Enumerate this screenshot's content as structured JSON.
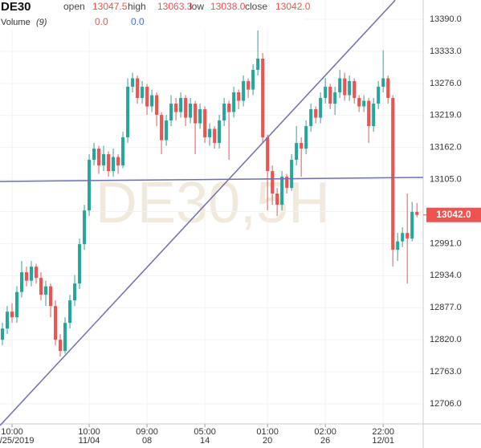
{
  "chart_data": {
    "type": "candlestick",
    "header": {
      "symbol": "DE30",
      "fields": [
        {
          "label": "open",
          "value": "13047.5"
        },
        {
          "label": "high",
          "value": "13063.3"
        },
        {
          "label": "low",
          "value": "13038.0"
        },
        {
          "label": "close",
          "value": "13042.0"
        }
      ],
      "volume_label": "Volume",
      "volume_period": "(9)",
      "volume_values": [
        "0.0",
        "0.0"
      ]
    },
    "watermark": "DE30,5H",
    "price_tag": "13042.0",
    "up_color": "#26a69a",
    "down_color": "#ef5350",
    "line_color": "#6f6fae",
    "open": [
      12820,
      12840,
      12870,
      12860,
      12905,
      12940,
      12925,
      12950,
      12930,
      12900,
      12915,
      12880,
      12820,
      12800,
      12850,
      12890,
      12920,
      12990,
      13050,
      13140,
      13160,
      13130,
      13150,
      13120,
      13145,
      13130,
      13180,
      13270,
      13285,
      13250,
      13270,
      13235,
      13255,
      13220,
      13175,
      13210,
      13240,
      13225,
      13250,
      13215,
      13240,
      13205,
      13230,
      13180,
      13195,
      13170,
      13210,
      13240,
      13225,
      13260,
      13245,
      13280,
      13265,
      13300,
      13320,
      13180,
      13120,
      13080,
      13060,
      13110,
      13090,
      13140,
      13170,
      13160,
      13200,
      13230,
      13215,
      13250,
      13270,
      13240,
      13260,
      13285,
      13255,
      13280,
      13250,
      13235,
      13245,
      13200,
      13240,
      13270,
      13285,
      13250,
      12980,
      12995,
      13010,
      13000,
      13047.5
    ],
    "high": [
      12850,
      12880,
      12885,
      12915,
      12960,
      12950,
      12960,
      12955,
      12940,
      12925,
      12920,
      12890,
      12830,
      12860,
      12900,
      12935,
      13000,
      13060,
      13150,
      13170,
      13165,
      13165,
      13155,
      13160,
      13150,
      13190,
      13285,
      13295,
      13290,
      13280,
      13275,
      13265,
      13260,
      13225,
      13220,
      13255,
      13250,
      13260,
      13255,
      13250,
      13245,
      13240,
      13235,
      13205,
      13200,
      13220,
      13250,
      13245,
      13270,
      13265,
      13290,
      13285,
      13310,
      13370,
      13330,
      13185,
      13130,
      13090,
      13120,
      13115,
      13150,
      13200,
      13180,
      13210,
      13240,
      13235,
      13260,
      13285,
      13275,
      13270,
      13300,
      13295,
      13290,
      13285,
      13255,
      13255,
      13250,
      13250,
      13280,
      13335,
      13290,
      13255,
      13010,
      13020,
      13080,
      13065,
      13063.3
    ],
    "low": [
      12810,
      12830,
      12850,
      12850,
      12895,
      12915,
      12915,
      12920,
      12890,
      12880,
      12860,
      12810,
      12790,
      12795,
      12840,
      12880,
      12910,
      12980,
      13040,
      13130,
      13115,
      13120,
      13110,
      13110,
      13115,
      13125,
      13170,
      13260,
      13240,
      13240,
      13220,
      13225,
      13200,
      13150,
      13165,
      13200,
      13210,
      13215,
      13200,
      13205,
      13150,
      13195,
      13170,
      13165,
      13160,
      13160,
      13200,
      13140,
      13215,
      13230,
      13235,
      13250,
      13255,
      13290,
      13170,
      13050,
      13060,
      13040,
      13050,
      13080,
      13085,
      13130,
      13110,
      13150,
      13190,
      13205,
      13205,
      13240,
      13230,
      13220,
      13250,
      13245,
      13245,
      13240,
      13225,
      13225,
      13170,
      13190,
      13230,
      13260,
      13240,
      12950,
      12960,
      12985,
      12920,
      12995,
      13038
    ],
    "close": [
      12840,
      12870,
      12860,
      12905,
      12940,
      12925,
      12950,
      12930,
      12900,
      12915,
      12880,
      12820,
      12800,
      12850,
      12890,
      12920,
      12990,
      13050,
      13140,
      13160,
      13130,
      13150,
      13120,
      13145,
      13130,
      13180,
      13270,
      13285,
      13250,
      13270,
      13235,
      13255,
      13220,
      13175,
      13210,
      13240,
      13225,
      13250,
      13215,
      13240,
      13205,
      13230,
      13180,
      13195,
      13170,
      13210,
      13240,
      13225,
      13260,
      13245,
      13280,
      13265,
      13300,
      13320,
      13180,
      13120,
      13080,
      13060,
      13110,
      13090,
      13140,
      13170,
      13160,
      13200,
      13230,
      13215,
      13250,
      13270,
      13240,
      13260,
      13285,
      13255,
      13280,
      13250,
      13235,
      13245,
      13200,
      13240,
      13270,
      13285,
      13250,
      12980,
      12995,
      13010,
      13000,
      13047.5,
      13042
    ],
    "trend_lines": [
      {
        "x": [
          -0.5,
          81.5
        ],
        "y": [
          12667.5,
          13424
        ]
      },
      {
        "x": [
          -0.5,
          87.3
        ],
        "y": [
          13101.6,
          13108.7
        ]
      }
    ],
    "xlim": [
      -0.5,
      87.3
    ],
    "ylim": [
      12670.3,
      13424.3
    ],
    "yticks": [
      {
        "value": 12706,
        "label": "12706.0"
      },
      {
        "value": 12763,
        "label": "12763.0"
      },
      {
        "value": 12820,
        "label": "12820.0"
      },
      {
        "value": 12877,
        "label": "12877.0"
      },
      {
        "value": 12934,
        "label": "12934.0"
      },
      {
        "value": 12991,
        "label": "12991.0"
      },
      {
        "value": 13048,
        "label": "13048.0"
      },
      {
        "value": 13105,
        "label": "13105.0"
      },
      {
        "value": 13162,
        "label": "13162.0"
      },
      {
        "value": 13219,
        "label": "13219.0"
      },
      {
        "value": 13276,
        "label": "13276.0"
      },
      {
        "value": 13333,
        "label": "13333.0"
      },
      {
        "value": 13390,
        "label": "13390.0"
      }
    ],
    "xticks": [
      {
        "value": 2,
        "time": "10:00",
        "date": "10/25/2019"
      },
      {
        "value": 18,
        "time": "10:00",
        "date": "11/04"
      },
      {
        "value": 30,
        "time": "09:00",
        "date": "08"
      },
      {
        "value": 42,
        "time": "05:00",
        "date": "14"
      },
      {
        "value": 55,
        "time": "01:00",
        "date": "20"
      },
      {
        "value": 67,
        "time": "02:00",
        "date": "26"
      },
      {
        "value": 79,
        "time": "22:00",
        "date": "12/01"
      }
    ],
    "grid": true
  }
}
